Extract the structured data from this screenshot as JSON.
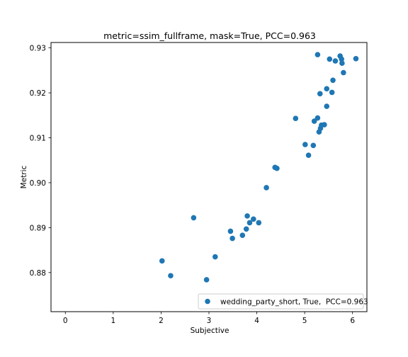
{
  "chart_data": {
    "type": "scatter",
    "title": "metric=ssim_fullframe, mask=True, PCC=0.963",
    "xlabel": "Subjective",
    "ylabel": "Metric",
    "xlim": [
      -0.3,
      6.3
    ],
    "ylim": [
      0.8713,
      0.9312
    ],
    "xticks": [
      0,
      1,
      2,
      3,
      4,
      5,
      6
    ],
    "xtick_labels": [
      "0",
      "1",
      "2",
      "3",
      "4",
      "5",
      "6"
    ],
    "yticks": [
      0.88,
      0.89,
      0.9,
      0.91,
      0.92,
      0.93
    ],
    "ytick_labels": [
      "0.88",
      "0.89",
      "0.90",
      "0.91",
      "0.92",
      "0.93"
    ],
    "grid": false,
    "legend_position": "lower-right",
    "marker_color": "#1f77b4",
    "series": [
      {
        "name": "wedding_party_short, True,  PCC=0.963",
        "points": [
          [
            2.02,
            0.8826
          ],
          [
            2.2,
            0.8793
          ],
          [
            2.95,
            0.8784
          ],
          [
            2.68,
            0.8922
          ],
          [
            3.13,
            0.8835
          ],
          [
            3.45,
            0.8892
          ],
          [
            3.49,
            0.8876
          ],
          [
            3.7,
            0.8883
          ],
          [
            3.78,
            0.8897
          ],
          [
            3.8,
            0.8926
          ],
          [
            3.85,
            0.8911
          ],
          [
            3.93,
            0.8919
          ],
          [
            4.04,
            0.8911
          ],
          [
            4.2,
            0.8989
          ],
          [
            4.38,
            0.9034
          ],
          [
            4.42,
            0.9032
          ],
          [
            4.81,
            0.9143
          ],
          [
            5.01,
            0.9085
          ],
          [
            5.08,
            0.9061
          ],
          [
            5.18,
            0.9083
          ],
          [
            5.2,
            0.9137
          ],
          [
            5.27,
            0.9144
          ],
          [
            5.3,
            0.9113
          ],
          [
            5.33,
            0.9121
          ],
          [
            5.35,
            0.9128
          ],
          [
            5.41,
            0.9129
          ],
          [
            5.46,
            0.917
          ],
          [
            5.46,
            0.9209
          ],
          [
            5.32,
            0.9198
          ],
          [
            5.57,
            0.9201
          ],
          [
            5.59,
            0.9228
          ],
          [
            5.27,
            0.9285
          ],
          [
            5.52,
            0.9275
          ],
          [
            5.64,
            0.9271
          ],
          [
            5.74,
            0.9282
          ],
          [
            5.77,
            0.9275
          ],
          [
            5.78,
            0.9266
          ],
          [
            5.81,
            0.9245
          ],
          [
            6.07,
            0.9276
          ]
        ]
      }
    ]
  }
}
